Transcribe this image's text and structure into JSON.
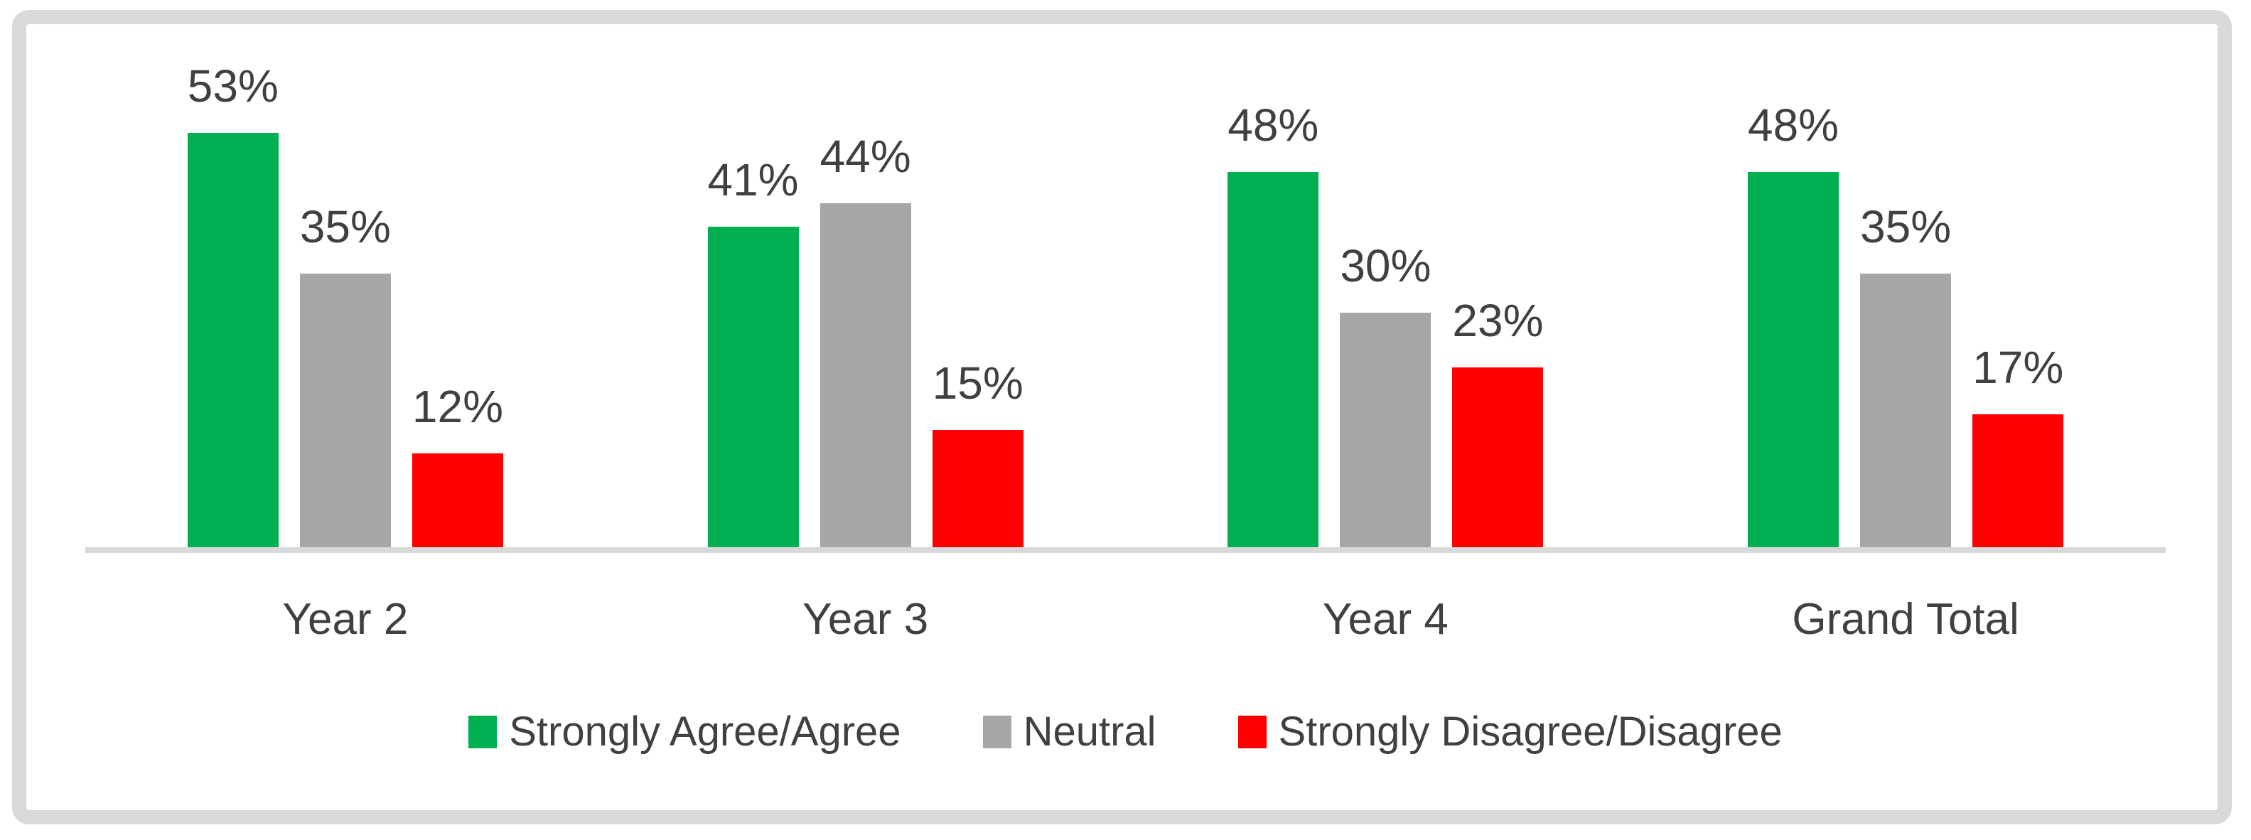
{
  "chart_data": {
    "type": "bar",
    "categories": [
      "Year 2",
      "Year 3",
      "Year 4",
      "Grand Total"
    ],
    "series": [
      {
        "name": "Strongly Agree/Agree",
        "color": "#00B050",
        "values": [
          53,
          41,
          48,
          48
        ],
        "labels": [
          "53%",
          "41%",
          "48%",
          "48%"
        ]
      },
      {
        "name": "Neutral",
        "color": "#A6A6A6",
        "values": [
          35,
          44,
          30,
          35
        ],
        "labels": [
          "35%",
          "44%",
          "30%",
          "35%"
        ]
      },
      {
        "name": "Strongly Disagree/Disagree",
        "color": "#FF0000",
        "values": [
          12,
          15,
          23,
          17
        ],
        "labels": [
          "12%",
          "15%",
          "23%",
          "17%"
        ]
      }
    ],
    "title": "",
    "xlabel": "",
    "ylabel": "",
    "ylim": [
      0,
      60
    ],
    "grid": false,
    "legend_position": "bottom",
    "data_labels": true
  },
  "style": {
    "axis_color": "#D9D9D9",
    "frame_color": "#D9D9D9",
    "text_color": "#404040",
    "background": "#FFFFFF"
  }
}
